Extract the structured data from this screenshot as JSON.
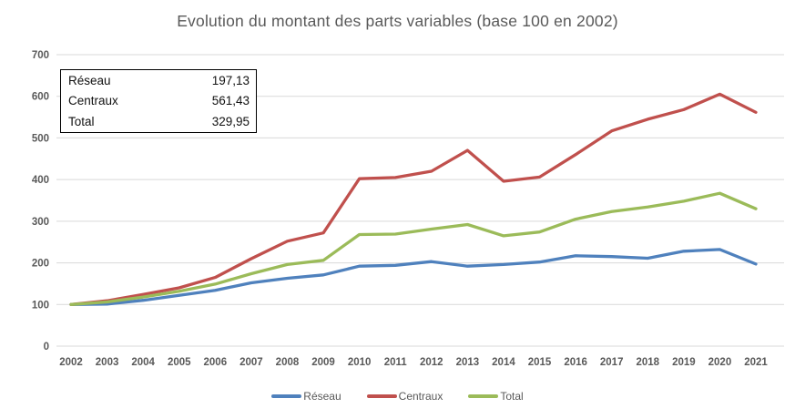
{
  "title": "Evolution du montant des parts variables (base 100 en 2002)",
  "colors": {
    "reseau": "#4F81BD",
    "centraux": "#C0504D",
    "total": "#9BBB59",
    "gridline": "#D9D9D9",
    "axis_text": "#595959",
    "box_border": "#000000",
    "box_text": "#111111"
  },
  "summary_box": {
    "rows": [
      {
        "label": "Réseau",
        "value": "197,13"
      },
      {
        "label": "Centraux",
        "value": "561,43"
      },
      {
        "label": "Total",
        "value": "329,95"
      }
    ]
  },
  "legend": {
    "items": [
      {
        "label": "Réseau",
        "color": "#4F81BD"
      },
      {
        "label": "Centraux",
        "color": "#C0504D"
      },
      {
        "label": "Total",
        "color": "#9BBB59"
      }
    ]
  },
  "chart_data": {
    "type": "line",
    "title": "Evolution du montant des parts variables (base 100 en 2002)",
    "categories": [
      "2002",
      "2003",
      "2004",
      "2005",
      "2006",
      "2007",
      "2008",
      "2009",
      "2010",
      "2011",
      "2012",
      "2013",
      "2014",
      "2015",
      "2016",
      "2017",
      "2018",
      "2019",
      "2020",
      "2021"
    ],
    "series": [
      {
        "name": "Réseau",
        "color": "#4F81BD",
        "values": [
          100,
          101,
          110,
          122,
          134,
          152,
          163,
          171,
          192,
          194,
          203,
          192,
          196,
          202,
          217,
          215,
          211,
          228,
          232,
          197.13
        ]
      },
      {
        "name": "Centraux",
        "color": "#C0504D",
        "values": [
          100,
          109,
          124,
          140,
          165,
          210,
          252,
          272,
          402,
          405,
          420,
          470,
          396,
          406,
          460,
          517,
          545,
          568,
          605,
          561.43
        ]
      },
      {
        "name": "Total",
        "color": "#9BBB59",
        "values": [
          100,
          106,
          118,
          132,
          149,
          174,
          196,
          206,
          268,
          269,
          281,
          292,
          265,
          274,
          305,
          323,
          334,
          348,
          367,
          329.95
        ]
      }
    ],
    "xlabel": "",
    "ylabel": "",
    "ylim": [
      0,
      700
    ],
    "ytick_step": 100,
    "grid": true,
    "legend_position": "bottom"
  }
}
